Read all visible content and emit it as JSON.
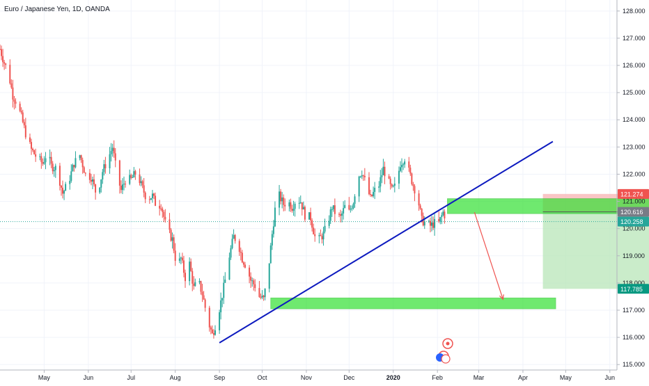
{
  "chart_data": {
    "type": "candlestick",
    "title": "Euro / Japanese Yen, 1D, OANDA",
    "price_axis": {
      "min": 114.8,
      "max": 128.2,
      "ticks": [
        "115.000",
        "116.000",
        "117.000",
        "118.000",
        "119.000",
        "120.000",
        "121.000",
        "122.000",
        "123.000",
        "124.000",
        "125.000",
        "126.000",
        "127.000",
        "128.000"
      ],
      "tick_values": [
        115,
        116,
        117,
        118,
        119,
        120,
        121,
        122,
        123,
        124,
        125,
        126,
        127,
        128
      ]
    },
    "time_axis": {
      "labels": [
        {
          "text": "May",
          "day": 31
        },
        {
          "text": "Jun",
          "day": 62
        },
        {
          "text": "Jul",
          "day": 92
        },
        {
          "text": "Aug",
          "day": 123
        },
        {
          "text": "Sep",
          "day": 154
        },
        {
          "text": "Oct",
          "day": 184
        },
        {
          "text": "Nov",
          "day": 215
        },
        {
          "text": "Dec",
          "day": 245
        },
        {
          "text": "2020",
          "day": 276
        },
        {
          "text": "Feb",
          "day": 307
        },
        {
          "text": "Mar",
          "day": 336
        },
        {
          "text": "Apr",
          "day": 367
        },
        {
          "text": "May",
          "day": 397
        },
        {
          "text": "Jun",
          "day": 428
        }
      ],
      "day_range": [
        0,
        433
      ]
    },
    "price_badges": [
      {
        "text": "121.274",
        "value": 121.274,
        "color": "#ef5350"
      },
      {
        "text": "120.616",
        "value": 120.616,
        "color": "#787b86"
      },
      {
        "text": "120.258",
        "value": 120.258,
        "color": "#26a69a"
      },
      {
        "text": "117.785",
        "value": 117.785,
        "color": "#089981"
      }
    ],
    "close_line_value": 120.258,
    "candle_colors": {
      "up": "#26a69a",
      "down": "#ef5350"
    },
    "price_path": [
      [
        0,
        126.6
      ],
      [
        3,
        126.1
      ],
      [
        6,
        125.7
      ],
      [
        9,
        124.9
      ],
      [
        12,
        124.6
      ],
      [
        15,
        124.1
      ],
      [
        18,
        123.5
      ],
      [
        22,
        122.9
      ],
      [
        26,
        122.6
      ],
      [
        30,
        122.4
      ],
      [
        33,
        122.8
      ],
      [
        36,
        122.3
      ],
      [
        40,
        122.2
      ],
      [
        44,
        121.3
      ],
      [
        48,
        121.7
      ],
      [
        52,
        122.4
      ],
      [
        56,
        122.7
      ],
      [
        60,
        122.0
      ],
      [
        64,
        121.9
      ],
      [
        68,
        121.2
      ],
      [
        72,
        122.1
      ],
      [
        76,
        122.6
      ],
      [
        79,
        123.0
      ],
      [
        82,
        122.0
      ],
      [
        85,
        121.4
      ],
      [
        88,
        121.8
      ],
      [
        92,
        121.8
      ],
      [
        96,
        122.1
      ],
      [
        99,
        121.6
      ],
      [
        103,
        121.1
      ],
      [
        107,
        121.2
      ],
      [
        110,
        120.8
      ],
      [
        113,
        120.9
      ],
      [
        116,
        120.2
      ],
      [
        118,
        119.9
      ],
      [
        121,
        119.6
      ],
      [
        124,
        118.6
      ],
      [
        127,
        118.9
      ],
      [
        130,
        118.2
      ],
      [
        133,
        118.7
      ],
      [
        136,
        117.8
      ],
      [
        139,
        118.1
      ],
      [
        142,
        117.6
      ],
      [
        146,
        116.6
      ],
      [
        149,
        116.1
      ],
      [
        152,
        116.6
      ],
      [
        155,
        117.3
      ],
      [
        158,
        118.1
      ],
      [
        161,
        119.0
      ],
      [
        164,
        119.7
      ],
      [
        167,
        119.5
      ],
      [
        170,
        118.9
      ],
      [
        173,
        118.6
      ],
      [
        176,
        118.1
      ],
      [
        179,
        117.9
      ],
      [
        182,
        117.5
      ],
      [
        185,
        117.4
      ],
      [
        188,
        118.3
      ],
      [
        191,
        119.8
      ],
      [
        193,
        120.7
      ],
      [
        196,
        121.2
      ],
      [
        199,
        120.9
      ],
      [
        202,
        121.0
      ],
      [
        205,
        120.8
      ],
      [
        208,
        121.1
      ],
      [
        211,
        121.0
      ],
      [
        214,
        120.5
      ],
      [
        218,
        120.4
      ],
      [
        221,
        119.7
      ],
      [
        224,
        119.6
      ],
      [
        227,
        119.8
      ],
      [
        230,
        120.2
      ],
      [
        233,
        120.8
      ],
      [
        236,
        120.5
      ],
      [
        239,
        120.4
      ],
      [
        242,
        120.8
      ],
      [
        245,
        120.6
      ],
      [
        248,
        121.0
      ],
      [
        251,
        121.9
      ],
      [
        254,
        122.1
      ],
      [
        257,
        121.6
      ],
      [
        260,
        121.1
      ],
      [
        263,
        121.4
      ],
      [
        266,
        121.6
      ],
      [
        269,
        122.2
      ],
      [
        272,
        121.8
      ],
      [
        275,
        121.4
      ],
      [
        278,
        121.6
      ],
      [
        281,
        122.4
      ],
      [
        284,
        122.6
      ],
      [
        287,
        122.1
      ],
      [
        290,
        121.6
      ],
      [
        293,
        121.2
      ],
      [
        296,
        120.3
      ],
      [
        299,
        120.2
      ],
      [
        302,
        120.1
      ],
      [
        305,
        120.2
      ],
      [
        308,
        120.2
      ],
      [
        311,
        120.6
      ],
      [
        314,
        120.3
      ]
    ],
    "trendline": {
      "color": "#0d1abf",
      "from": {
        "day": 154,
        "price": 115.8
      },
      "to": {
        "day": 388,
        "price": 123.2
      }
    },
    "zones": [
      {
        "name": "resistance-zone",
        "color": "#33e033",
        "from_day": 314,
        "to_day": 456,
        "top": 121.1,
        "bottom": 120.55
      },
      {
        "name": "support-zone",
        "color": "#33e033",
        "from_day": 190,
        "to_day": 390,
        "top": 117.45,
        "bottom": 117.05
      }
    ],
    "arrow": {
      "color": "#ef5350",
      "from": {
        "day": 333,
        "price": 120.6
      },
      "to": {
        "day": 353,
        "price": 117.4
      }
    },
    "position_tool": {
      "from_day": 381,
      "to_day": 459,
      "entry": 120.616,
      "stop": 121.274,
      "target": 117.785,
      "stop_color": "#f8b3b3",
      "target_color": "#b8e6b8"
    }
  }
}
